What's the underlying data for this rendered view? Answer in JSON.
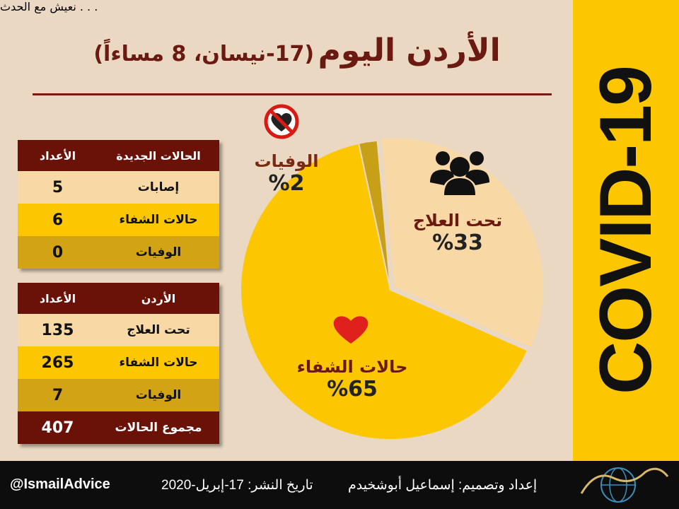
{
  "header": {
    "title": "الأردن اليوم",
    "subtitle": "(17-نيسان، 8 مساءاً)"
  },
  "side_label": "COVID-19",
  "table_new": {
    "headers": [
      "الحالات الجديدة",
      "الأعداد"
    ],
    "rows": [
      {
        "label": "إصابات",
        "value": "5"
      },
      {
        "label": "حالات الشفاء",
        "value": "6"
      },
      {
        "label": "الوفيات",
        "value": "0"
      }
    ]
  },
  "table_jordan": {
    "headers": [
      "الأردن",
      "الأعداد"
    ],
    "rows": [
      {
        "label": "تحت العلاج",
        "value": "135"
      },
      {
        "label": "حالات الشفاء",
        "value": "265"
      },
      {
        "label": "الوفيات",
        "value": "7"
      },
      {
        "label": "مجموع الحالات",
        "value": "407"
      }
    ]
  },
  "chart_data": {
    "type": "pie",
    "title": "",
    "slices": [
      {
        "name": "تحت العلاج",
        "value": 33,
        "label": "%33",
        "color": "#f8d9a6",
        "icon": "group-icon"
      },
      {
        "name": "حالات الشفاء",
        "value": 65,
        "label": "%65",
        "color": "#fcc600",
        "icon": "heart-icon"
      },
      {
        "name": "الوفيات",
        "value": 2,
        "label": "%2",
        "color": "#c8a018",
        "icon": "broken-heart-icon"
      }
    ]
  },
  "colors": {
    "background": "#ead8c2",
    "accent_yellow": "#fcc600",
    "dark_red": "#6b1208",
    "footer": "#0d0d0d"
  },
  "footer": {
    "handle": "@IsmailAdvice",
    "date": "تاريخ النشر: 17-إبريل-2020",
    "credit": "إعداد وتصميم: إسماعيل أبوشخيدم",
    "logo_caption": "نعيش مع الحدث . . .",
    "logo_icon": "globe-logo-icon"
  }
}
